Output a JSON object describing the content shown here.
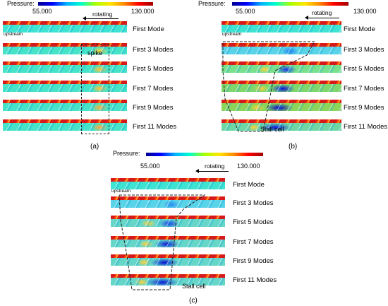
{
  "colorbar": {
    "label": "Pressure:",
    "min": "55.000",
    "max": "130.000",
    "rotating_label": "rotating",
    "colors": [
      "#00008f",
      "#0000ff",
      "#00b3ff",
      "#00ffcc",
      "#a8ff00",
      "#ffe600",
      "#ff8a00",
      "#ff0000",
      "#a00000"
    ]
  },
  "mode_labels": [
    "First Mode",
    "First 3 Modes",
    "First 5 Modes",
    "First 7 Modes",
    "First 9 Modes",
    "First 11 Modes"
  ],
  "strip_tags": {
    "upstream": "upstream"
  },
  "panels": [
    {
      "id": "a",
      "caption": "(a)",
      "annotation": "spike",
      "fields": [
        {
          "bg": "#3fe3d2"
        },
        {
          "bg": "#45e3c8",
          "hot": "#ffd23a"
        },
        {
          "bg": "#45e3c8",
          "hot": "#ffc13a"
        },
        {
          "bg": "#45e3c8",
          "hot": "#ffc13a"
        },
        {
          "bg": "#45e3c8",
          "hot": "#ffb13a"
        },
        {
          "bg": "#45e3c8",
          "hot": "#ffa63a"
        }
      ]
    },
    {
      "id": "b",
      "caption": "(b)",
      "annotation": "Stall cell",
      "fields": [
        {
          "bg": "#3fe3d2"
        },
        {
          "bg": "#59d3e8",
          "cold": "#1f7df0"
        },
        {
          "bg": "#79e08e",
          "cold": "#1736e6"
        },
        {
          "bg": "#7ed66c",
          "cold": "#0b11d6"
        },
        {
          "bg": "#8bd65a",
          "cold": "#0006c8"
        },
        {
          "bg": "#6ed7a4",
          "cold": "#0b1be0"
        }
      ]
    },
    {
      "id": "c",
      "caption": "(c)",
      "annotation": "Stall cell",
      "fields": [
        {
          "bg": "#3fe3d2"
        },
        {
          "bg": "#59d3e8",
          "cold": "#2a8cf2"
        },
        {
          "bg": "#66d6c8",
          "cold": "#1a3ee8"
        },
        {
          "bg": "#66d6c8",
          "cold": "#0c14d8"
        },
        {
          "bg": "#66d6c8",
          "cold": "#0610d2"
        },
        {
          "bg": "#66d6c8",
          "cold": "#0818d6"
        }
      ]
    }
  ]
}
